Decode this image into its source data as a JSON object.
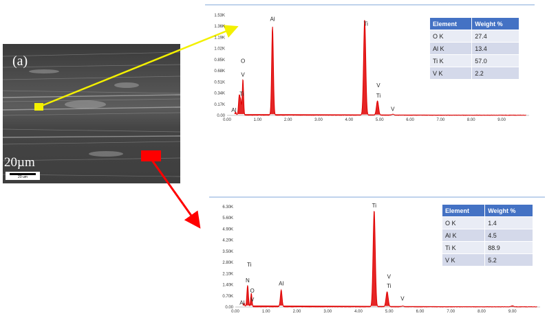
{
  "micrograph": {
    "panel_label": "(a)",
    "scale_text": "20µm",
    "scalebar_text": "20 um"
  },
  "colors": {
    "spectrum": "#e00000",
    "marker_top": "#f3f000",
    "marker_bottom": "#ff0000",
    "table_header": "#4472c4"
  },
  "chart_data": [
    {
      "type": "line",
      "title": "",
      "xlabel": "",
      "ylabel": "",
      "xlim": [
        0,
        9.9
      ],
      "ylim": [
        0,
        1.53
      ],
      "x_ticks": [
        "0.00",
        "1.00",
        "2.00",
        "3.00",
        "4.00",
        "5.00",
        "6.00",
        "7.00",
        "8.00",
        "9.00"
      ],
      "x_tick_values": [
        0,
        1,
        2,
        3,
        4,
        5,
        6,
        7,
        8,
        9
      ],
      "y_ticks": [
        "0.00",
        "0.17K",
        "0.34K",
        "0.51K",
        "0.68K",
        "0.85K",
        "1.02K",
        "1.19K",
        "1.36K",
        "1.53K"
      ],
      "y_tick_values": [
        0,
        0.17,
        0.34,
        0.51,
        0.68,
        0.85,
        1.02,
        1.19,
        1.36,
        1.53
      ],
      "peaks": [
        {
          "x": 0.28,
          "y": 0.05,
          "w": 0.03
        },
        {
          "x": 0.4,
          "y": 0.3,
          "w": 0.035
        },
        {
          "x": 0.45,
          "y": 0.2,
          "w": 0.03
        },
        {
          "x": 0.52,
          "y": 0.55,
          "w": 0.03
        },
        {
          "x": 1.49,
          "y": 1.35,
          "w": 0.04
        },
        {
          "x": 4.51,
          "y": 1.46,
          "w": 0.05
        },
        {
          "x": 4.93,
          "y": 0.22,
          "w": 0.05
        },
        {
          "x": 5.43,
          "y": 0.015,
          "w": 0.05
        }
      ],
      "peak_labels": [
        {
          "text": "Al",
          "x": 0.22,
          "y": 0.05
        },
        {
          "text": "Ti",
          "x": 0.48,
          "y": 0.3
        },
        {
          "text": "V",
          "x": 0.52,
          "y": 0.59
        },
        {
          "text": "O",
          "x": 0.52,
          "y": 0.8
        },
        {
          "text": "Al",
          "x": 1.49,
          "y": 1.44
        },
        {
          "text": "Ti",
          "x": 4.55,
          "y": 1.37
        },
        {
          "text": "V",
          "x": 4.96,
          "y": 0.43
        },
        {
          "text": "Ti",
          "x": 4.96,
          "y": 0.27
        },
        {
          "text": "V",
          "x": 5.43,
          "y": 0.07
        }
      ],
      "table": {
        "headers": [
          "Element",
          "Weight %"
        ],
        "rows": [
          [
            "O K",
            "27.4"
          ],
          [
            "Al K",
            "13.4"
          ],
          [
            "Ti K",
            "57.0"
          ],
          [
            "V K",
            "2.2"
          ]
        ]
      }
    },
    {
      "type": "line",
      "title": "",
      "xlabel": "",
      "ylabel": "",
      "xlim": [
        0,
        9.9
      ],
      "ylim": [
        0,
        6.3
      ],
      "x_ticks": [
        "0.00",
        "1.00",
        "2.00",
        "3.00",
        "4.00",
        "5.00",
        "6.00",
        "7.00",
        "8.00",
        "9.00"
      ],
      "x_tick_values": [
        0,
        1,
        2,
        3,
        4,
        5,
        6,
        7,
        8,
        9
      ],
      "y_ticks": [
        "0.00",
        "0.70K",
        "1.40K",
        "2.10K",
        "2.80K",
        "3.50K",
        "4.20K",
        "4.90K",
        "5.60K",
        "6.30K"
      ],
      "y_tick_values": [
        0,
        0.7,
        1.4,
        2.1,
        2.8,
        3.5,
        4.2,
        4.9,
        5.6,
        6.3
      ],
      "peaks": [
        {
          "x": 0.28,
          "y": 0.25,
          "w": 0.03
        },
        {
          "x": 0.4,
          "y": 1.35,
          "w": 0.035
        },
        {
          "x": 0.52,
          "y": 0.85,
          "w": 0.03
        },
        {
          "x": 1.49,
          "y": 1.05,
          "w": 0.04
        },
        {
          "x": 4.51,
          "y": 6.05,
          "w": 0.05
        },
        {
          "x": 4.93,
          "y": 0.95,
          "w": 0.05
        },
        {
          "x": 5.43,
          "y": 0.05,
          "w": 0.05
        },
        {
          "x": 9.0,
          "y": 0.06,
          "w": 0.05
        }
      ],
      "peak_labels": [
        {
          "text": "Al",
          "x": 0.22,
          "y": 0.15
        },
        {
          "text": "V",
          "x": 0.55,
          "y": 0.35
        },
        {
          "text": "O",
          "x": 0.55,
          "y": 0.9
        },
        {
          "text": "N",
          "x": 0.4,
          "y": 1.55
        },
        {
          "text": "Ti",
          "x": 0.45,
          "y": 2.55
        },
        {
          "text": "Al",
          "x": 1.49,
          "y": 1.35
        },
        {
          "text": "Ti",
          "x": 4.51,
          "y": 6.25
        },
        {
          "text": "V",
          "x": 4.99,
          "y": 1.8
        },
        {
          "text": "Ti",
          "x": 4.99,
          "y": 1.2
        },
        {
          "text": "V",
          "x": 5.43,
          "y": 0.4
        }
      ],
      "table": {
        "headers": [
          "Element",
          "Weight %"
        ],
        "rows": [
          [
            "O K",
            "1.4"
          ],
          [
            "Al K",
            "4.5"
          ],
          [
            "Ti K",
            "88.9"
          ],
          [
            "V K",
            "5.2"
          ]
        ]
      }
    }
  ]
}
